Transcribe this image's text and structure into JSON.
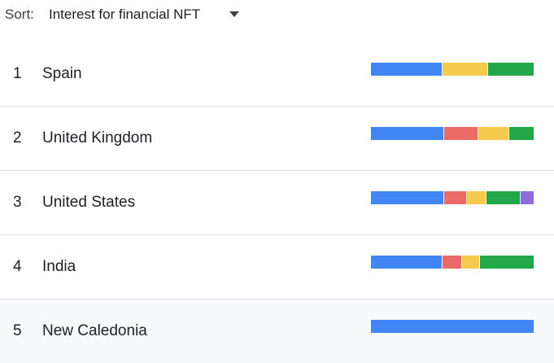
{
  "sort": {
    "label": "Sort:",
    "value": "Interest for financial NFT"
  },
  "colors": {
    "blue": "#4285f4",
    "red": "#ea6b66",
    "yellow": "#f6ca4c",
    "green": "#22a84a",
    "purple": "#8e6cdb"
  },
  "rows": [
    {
      "rank": "1",
      "name": "Spain",
      "segments": [
        {
          "color": "blue",
          "share": 44
        },
        {
          "color": "yellow",
          "share": 28
        },
        {
          "color": "green",
          "share": 28
        }
      ]
    },
    {
      "rank": "2",
      "name": "United Kingdom",
      "segments": [
        {
          "color": "blue",
          "share": 45
        },
        {
          "color": "red",
          "share": 21
        },
        {
          "color": "yellow",
          "share": 19
        },
        {
          "color": "green",
          "share": 15
        }
      ]
    },
    {
      "rank": "3",
      "name": "United States",
      "segments": [
        {
          "color": "blue",
          "share": 45
        },
        {
          "color": "red",
          "share": 14
        },
        {
          "color": "yellow",
          "share": 12
        },
        {
          "color": "green",
          "share": 21
        },
        {
          "color": "purple",
          "share": 8
        }
      ]
    },
    {
      "rank": "4",
      "name": "India",
      "segments": [
        {
          "color": "blue",
          "share": 44
        },
        {
          "color": "red",
          "share": 12
        },
        {
          "color": "yellow",
          "share": 11
        },
        {
          "color": "green",
          "share": 33
        }
      ]
    },
    {
      "rank": "5",
      "name": "New Caledonia",
      "segments": [
        {
          "color": "blue",
          "share": 100
        }
      ]
    }
  ]
}
